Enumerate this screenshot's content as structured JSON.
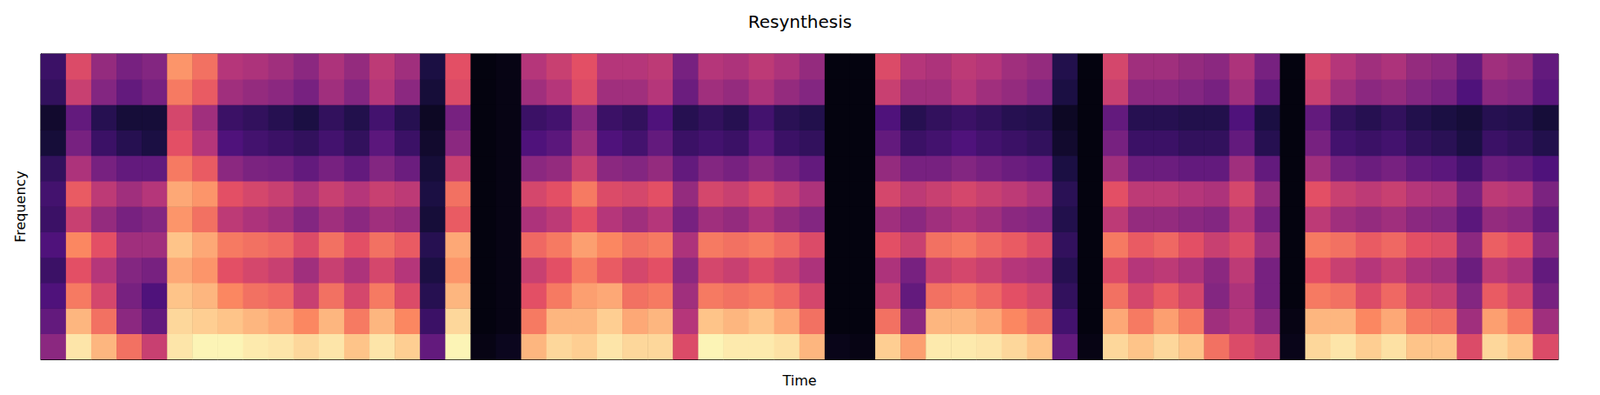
{
  "chart_data": {
    "type": "heatmap",
    "title": "Resynthesis",
    "x_label": "Time",
    "y_label": "Frequency",
    "tick_labels": false,
    "color_range": [
      0,
      100
    ],
    "cells": [
      [
        40,
        30,
        25,
        20,
        25,
        20,
        22,
        18,
        10,
        8,
        18,
        20
      ],
      [
        95,
        85,
        72,
        62,
        75,
        55,
        65,
        48,
        35,
        30,
        55,
        60
      ],
      [
        85,
        70,
        58,
        50,
        62,
        42,
        52,
        35,
        20,
        15,
        38,
        42
      ],
      [
        70,
        40,
        35,
        38,
        45,
        35,
        45,
        30,
        15,
        10,
        30,
        35
      ],
      [
        55,
        30,
        25,
        35,
        45,
        38,
        50,
        30,
        12,
        10,
        35,
        38
      ],
      [
        95,
        92,
        88,
        82,
        88,
        78,
        82,
        72,
        62,
        58,
        72,
        78
      ],
      [
        98,
        90,
        85,
        78,
        82,
        70,
        78,
        65,
        50,
        45,
        65,
        70
      ],
      [
        98,
        88,
        75,
        62,
        72,
        52,
        62,
        40,
        25,
        20,
        45,
        50
      ],
      [
        96,
        85,
        70,
        58,
        70,
        48,
        58,
        36,
        22,
        18,
        42,
        48
      ],
      [
        95,
        82,
        68,
        55,
        68,
        45,
        55,
        35,
        20,
        15,
        40,
        45
      ],
      [
        92,
        75,
        55,
        45,
        60,
        38,
        48,
        30,
        18,
        12,
        35,
        40
      ],
      [
        95,
        85,
        70,
        55,
        70,
        45,
        55,
        35,
        22,
        18,
        45,
        48
      ],
      [
        88,
        72,
        58,
        48,
        62,
        40,
        50,
        30,
        18,
        14,
        38,
        42
      ],
      [
        95,
        85,
        72,
        58,
        70,
        45,
        55,
        38,
        28,
        22,
        50,
        52
      ],
      [
        90,
        75,
        60,
        50,
        65,
        42,
        52,
        32,
        20,
        15,
        40,
        45
      ],
      [
        30,
        20,
        15,
        12,
        15,
        10,
        12,
        10,
        8,
        6,
        10,
        12
      ],
      [
        98,
        92,
        85,
        78,
        82,
        65,
        70,
        55,
        40,
        35,
        60,
        62
      ],
      [
        3,
        2,
        2,
        2,
        2,
        2,
        2,
        2,
        2,
        2,
        2,
        2
      ],
      [
        5,
        3,
        3,
        3,
        3,
        3,
        3,
        3,
        3,
        3,
        3,
        3
      ],
      [
        85,
        72,
        62,
        55,
        68,
        48,
        58,
        40,
        25,
        20,
        45,
        50
      ],
      [
        92,
        85,
        72,
        62,
        72,
        52,
        62,
        42,
        28,
        22,
        50,
        55
      ],
      [
        90,
        85,
        80,
        72,
        80,
        62,
        72,
        55,
        45,
        40,
        60,
        62
      ],
      [
        95,
        90,
        82,
        65,
        75,
        50,
        60,
        40,
        25,
        20,
        45,
        50
      ],
      [
        92,
        82,
        70,
        58,
        70,
        45,
        58,
        38,
        22,
        18,
        45,
        50
      ],
      [
        92,
        85,
        72,
        62,
        72,
        50,
        62,
        42,
        30,
        25,
        50,
        52
      ],
      [
        60,
        50,
        45,
        40,
        48,
        35,
        42,
        30,
        20,
        15,
        32,
        35
      ],
      [
        98,
        88,
        72,
        58,
        72,
        45,
        58,
        38,
        22,
        18,
        45,
        50
      ],
      [
        96,
        85,
        70,
        55,
        70,
        42,
        55,
        35,
        20,
        15,
        42,
        48
      ],
      [
        96,
        88,
        72,
        60,
        72,
        48,
        60,
        40,
        28,
        22,
        48,
        52
      ],
      [
        94,
        82,
        68,
        55,
        68,
        42,
        55,
        35,
        20,
        16,
        42,
        48
      ],
      [
        85,
        70,
        58,
        48,
        60,
        38,
        48,
        30,
        18,
        14,
        38,
        42
      ],
      [
        4,
        2,
        2,
        2,
        2,
        2,
        2,
        2,
        2,
        2,
        2,
        2
      ],
      [
        3,
        2,
        2,
        2,
        2,
        2,
        2,
        2,
        2,
        2,
        2,
        2
      ],
      [
        90,
        70,
        55,
        48,
        62,
        45,
        58,
        42,
        30,
        25,
        55,
        60
      ],
      [
        80,
        40,
        30,
        35,
        55,
        40,
        52,
        35,
        20,
        15,
        45,
        50
      ],
      [
        96,
        85,
        70,
        55,
        70,
        45,
        55,
        35,
        22,
        18,
        45,
        48
      ],
      [
        96,
        85,
        72,
        58,
        72,
        48,
        58,
        38,
        25,
        20,
        50,
        52
      ],
      [
        95,
        82,
        68,
        55,
        68,
        45,
        55,
        35,
        22,
        18,
        45,
        50
      ],
      [
        92,
        75,
        62,
        50,
        65,
        40,
        52,
        32,
        20,
        15,
        42,
        45
      ],
      [
        88,
        70,
        58,
        48,
        60,
        38,
        48,
        30,
        18,
        14,
        38,
        42
      ],
      [
        30,
        22,
        18,
        15,
        18,
        14,
        16,
        12,
        8,
        6,
        12,
        14
      ],
      [
        3,
        2,
        2,
        2,
        2,
        2,
        2,
        2,
        2,
        2,
        2,
        2
      ],
      [
        92,
        82,
        70,
        60,
        72,
        52,
        62,
        45,
        35,
        30,
        55,
        58
      ],
      [
        88,
        72,
        58,
        50,
        65,
        42,
        52,
        32,
        20,
        15,
        40,
        45
      ],
      [
        92,
        80,
        65,
        52,
        68,
        42,
        52,
        32,
        20,
        15,
        40,
        45
      ],
      [
        88,
        72,
        58,
        48,
        62,
        40,
        50,
        30,
        18,
        14,
        38,
        42
      ],
      [
        70,
        45,
        38,
        40,
        55,
        38,
        48,
        30,
        18,
        14,
        35,
        40
      ],
      [
        60,
        50,
        48,
        52,
        60,
        50,
        58,
        45,
        30,
        25,
        45,
        48
      ],
      [
        55,
        40,
        35,
        35,
        45,
        35,
        42,
        30,
        15,
        12,
        30,
        35
      ],
      [
        4,
        3,
        2,
        2,
        2,
        2,
        2,
        2,
        2,
        2,
        2,
        2
      ],
      [
        92,
        85,
        72,
        62,
        72,
        52,
        62,
        45,
        35,
        30,
        55,
        58
      ],
      [
        95,
        85,
        70,
        55,
        70,
        45,
        55,
        35,
        22,
        18,
        45,
        50
      ],
      [
        90,
        75,
        60,
        50,
        65,
        42,
        52,
        32,
        20,
        15,
        40,
        45
      ],
      [
        94,
        82,
        68,
        55,
        68,
        45,
        55,
        35,
        22,
        18,
        42,
        48
      ],
      [
        88,
        72,
        58,
        48,
        62,
        40,
        50,
        30,
        18,
        14,
        38,
        42
      ],
      [
        88,
        70,
        55,
        45,
        60,
        38,
        48,
        28,
        16,
        12,
        35,
        40
      ],
      [
        60,
        45,
        38,
        32,
        40,
        28,
        35,
        22,
        12,
        10,
        25,
        30
      ],
      [
        92,
        80,
        65,
        52,
        66,
        42,
        52,
        32,
        20,
        15,
        40,
        45
      ],
      [
        88,
        72,
        58,
        48,
        62,
        40,
        50,
        30,
        18,
        14,
        38,
        42
      ],
      [
        60,
        45,
        35,
        30,
        40,
        30,
        36,
        25,
        14,
        10,
        28,
        30
      ]
    ]
  }
}
